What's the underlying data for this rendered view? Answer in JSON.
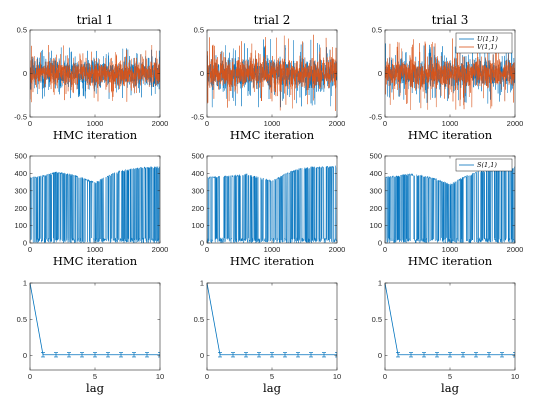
{
  "figure": {
    "colors": {
      "series_blue": "#0072BD",
      "series_orange": "#D95319",
      "axis": "#262626"
    }
  },
  "chart_data": [
    {
      "type": "line",
      "row": 0,
      "col": 0,
      "title": "trial 1",
      "xlabel": "HMC iteration",
      "ylabel": "",
      "xlim": [
        0,
        2000
      ],
      "ylim": [
        -0.5,
        0.5
      ],
      "xticks": [
        0,
        1000,
        2000
      ],
      "yticks": [
        -0.5,
        0,
        0.5
      ],
      "xtick_labels": [
        "0",
        "1000",
        "2000"
      ],
      "ytick_labels": [
        "-0.5",
        "0",
        "0.5"
      ],
      "series": [
        {
          "name": "",
          "color": "#0072BD",
          "trace": {
            "n": 2000,
            "mean": 0.0,
            "spread": 0.15,
            "max": 0.3
          }
        },
        {
          "name": "",
          "color": "#D95319",
          "trace": {
            "n": 2000,
            "mean": 0.0,
            "spread": 0.14,
            "max": 0.33
          }
        }
      ]
    },
    {
      "type": "line",
      "row": 0,
      "col": 1,
      "title": "trial 2",
      "xlabel": "HMC iteration",
      "ylabel": "",
      "xlim": [
        0,
        2000
      ],
      "ylim": [
        -0.5,
        0.5
      ],
      "xticks": [
        0,
        1000,
        2000
      ],
      "yticks": [
        -0.5,
        0,
        0.5
      ],
      "xtick_labels": [
        "0",
        "1000",
        "2000"
      ],
      "ytick_labels": [
        "-0.5",
        "0",
        "0.5"
      ],
      "series": [
        {
          "name": "",
          "color": "#0072BD",
          "trace": {
            "n": 2000,
            "mean": 0.0,
            "spread": 0.16,
            "max": 0.4
          }
        },
        {
          "name": "",
          "color": "#D95319",
          "trace": {
            "n": 2000,
            "mean": 0.0,
            "spread": 0.17,
            "max": 0.45
          }
        }
      ]
    },
    {
      "type": "line",
      "row": 0,
      "col": 2,
      "title": "trial 3",
      "xlabel": "HMC iteration",
      "ylabel": "",
      "xlim": [
        0,
        2000
      ],
      "ylim": [
        -0.5,
        0.5
      ],
      "xticks": [
        0,
        1000,
        2000
      ],
      "yticks": [
        -0.5,
        0,
        0.5
      ],
      "xtick_labels": [
        "0",
        "1000",
        "2000"
      ],
      "ytick_labels": [
        "-0.5",
        "0",
        "0.5"
      ],
      "legend": {
        "placement": "top-right",
        "entries": [
          "U(1,1)",
          "V(1,1)"
        ]
      },
      "series": [
        {
          "name": "U(1,1)",
          "color": "#0072BD",
          "trace": {
            "n": 2000,
            "mean": 0.0,
            "spread": 0.15,
            "max": 0.35
          }
        },
        {
          "name": "V(1,1)",
          "color": "#D95319",
          "trace": {
            "n": 2000,
            "mean": 0.0,
            "spread": 0.16,
            "max": 0.42
          }
        }
      ]
    },
    {
      "type": "line",
      "row": 1,
      "col": 0,
      "title": "",
      "xlabel": "HMC iteration",
      "ylabel": "",
      "xlim": [
        0,
        2000
      ],
      "ylim": [
        0,
        500
      ],
      "xticks": [
        0,
        1000,
        2000
      ],
      "yticks": [
        0,
        100,
        200,
        300,
        400,
        500
      ],
      "xtick_labels": [
        "0",
        "1000",
        "2000"
      ],
      "ytick_labels": [
        "0",
        "100",
        "200",
        "300",
        "400",
        "500"
      ],
      "series": [
        {
          "name": "",
          "color": "#0072BD",
          "envelope_x": [
            0,
            200,
            400,
            600,
            800,
            1000,
            1200,
            1400,
            1600,
            1800,
            2000
          ],
          "envelope_y": [
            380,
            390,
            410,
            400,
            380,
            350,
            390,
            420,
            430,
            440,
            440
          ],
          "low_band": [
            0,
            30
          ]
        }
      ]
    },
    {
      "type": "line",
      "row": 1,
      "col": 1,
      "title": "",
      "xlabel": "HMC iteration",
      "ylabel": "",
      "xlim": [
        0,
        2000
      ],
      "ylim": [
        0,
        500
      ],
      "xticks": [
        0,
        1000,
        2000
      ],
      "yticks": [
        0,
        100,
        200,
        300,
        400,
        500
      ],
      "xtick_labels": [
        "0",
        "1000",
        "2000"
      ],
      "ytick_labels": [
        "0",
        "100",
        "200",
        "300",
        "400",
        "500"
      ],
      "series": [
        {
          "name": "",
          "color": "#0072BD",
          "envelope_x": [
            0,
            200,
            400,
            600,
            800,
            1000,
            1200,
            1400,
            1600,
            1800,
            2000
          ],
          "envelope_y": [
            380,
            385,
            390,
            400,
            380,
            360,
            400,
            430,
            440,
            440,
            445
          ],
          "low_band": [
            0,
            30
          ]
        }
      ]
    },
    {
      "type": "line",
      "row": 1,
      "col": 2,
      "title": "",
      "xlabel": "HMC iteration",
      "ylabel": "",
      "xlim": [
        0,
        2000
      ],
      "ylim": [
        0,
        500
      ],
      "xticks": [
        0,
        1000,
        2000
      ],
      "yticks": [
        0,
        100,
        200,
        300,
        400,
        500
      ],
      "xtick_labels": [
        "0",
        "1000",
        "2000"
      ],
      "ytick_labels": [
        "0",
        "100",
        "200",
        "300",
        "400",
        "500"
      ],
      "legend": {
        "placement": "top-right",
        "entries": [
          "S(1,1)"
        ]
      },
      "series": [
        {
          "name": "S(1,1)",
          "color": "#0072BD",
          "envelope_x": [
            0,
            200,
            400,
            600,
            800,
            1000,
            1200,
            1400,
            1600,
            1800,
            2000
          ],
          "envelope_y": [
            380,
            390,
            400,
            390,
            370,
            340,
            380,
            410,
            420,
            430,
            440
          ],
          "low_band": [
            0,
            30
          ]
        }
      ]
    },
    {
      "type": "line",
      "row": 2,
      "col": 0,
      "title": "",
      "xlabel": "lag",
      "ylabel": "",
      "xlim": [
        0,
        10
      ],
      "ylim": [
        -0.2,
        1
      ],
      "xticks": [
        0,
        5,
        10
      ],
      "yticks": [
        0,
        0.5,
        1
      ],
      "xtick_labels": [
        "0",
        "5",
        "10"
      ],
      "ytick_labels": [
        "0",
        "0.5",
        "1"
      ],
      "series": [
        {
          "name": "",
          "color": "#0072BD",
          "x": [
            0,
            1,
            2,
            3,
            4,
            5,
            6,
            7,
            8,
            9,
            10
          ],
          "y": [
            1,
            0.01,
            0.01,
            0.01,
            0.01,
            0.01,
            0.01,
            0.01,
            0.01,
            0.01,
            0.01
          ],
          "err": 0.03
        }
      ]
    },
    {
      "type": "line",
      "row": 2,
      "col": 1,
      "title": "",
      "xlabel": "lag",
      "ylabel": "",
      "xlim": [
        0,
        10
      ],
      "ylim": [
        -0.2,
        1
      ],
      "xticks": [
        0,
        5,
        10
      ],
      "yticks": [
        0,
        0.5,
        1
      ],
      "xtick_labels": [
        "0",
        "5",
        "10"
      ],
      "ytick_labels": [
        "0",
        "0.5",
        "1"
      ],
      "series": [
        {
          "name": "",
          "color": "#0072BD",
          "x": [
            0,
            1,
            2,
            3,
            4,
            5,
            6,
            7,
            8,
            9,
            10
          ],
          "y": [
            1,
            0.01,
            0.01,
            0.01,
            0.01,
            0.01,
            0.01,
            0.01,
            0.01,
            0.01,
            0.01
          ],
          "err": 0.03
        }
      ]
    },
    {
      "type": "line",
      "row": 2,
      "col": 2,
      "title": "",
      "xlabel": "lag",
      "ylabel": "",
      "xlim": [
        0,
        10
      ],
      "ylim": [
        -0.2,
        1
      ],
      "xticks": [
        0,
        5,
        10
      ],
      "yticks": [
        0,
        0.5,
        1
      ],
      "xtick_labels": [
        "0",
        "5",
        "10"
      ],
      "ytick_labels": [
        "0",
        "0.5",
        "1"
      ],
      "series": [
        {
          "name": "",
          "color": "#0072BD",
          "x": [
            0,
            1,
            2,
            3,
            4,
            5,
            6,
            7,
            8,
            9,
            10
          ],
          "y": [
            1,
            0.01,
            0.01,
            0.01,
            0.01,
            0.01,
            0.01,
            0.01,
            0.01,
            0.01,
            0.01
          ],
          "err": 0.03
        }
      ]
    }
  ]
}
